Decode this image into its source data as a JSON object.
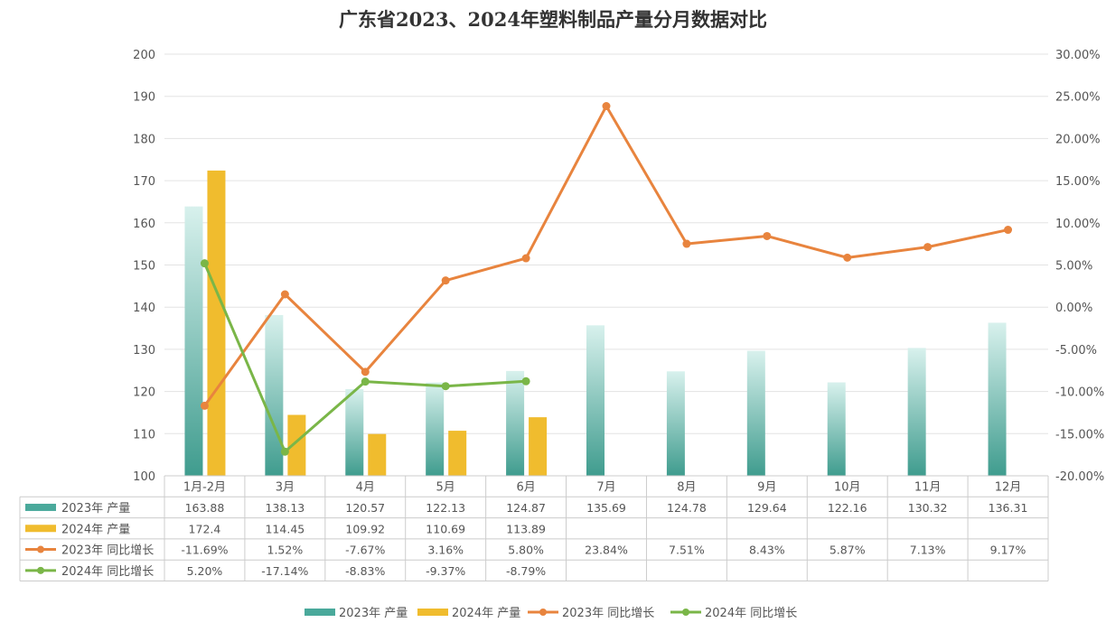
{
  "chart_data": {
    "type": "bar",
    "title": "广东省2023、2024年塑料制品产量分月数据对比",
    "categories": [
      "1月-2月",
      "3月",
      "4月",
      "5月",
      "6月",
      "7月",
      "8月",
      "9月",
      "10月",
      "11月",
      "12月"
    ],
    "y_left": {
      "range": [
        100,
        200
      ],
      "ticks": [
        "100",
        "110",
        "120",
        "130",
        "140",
        "150",
        "160",
        "170",
        "180",
        "190",
        "200"
      ]
    },
    "y_right": {
      "range": [
        -20,
        30
      ],
      "unit": "%",
      "ticks": [
        "-20.00%",
        "-15.00%",
        "-10.00%",
        "-5.00%",
        "0.00%",
        "5.00%",
        "10.00%",
        "15.00%",
        "20.00%",
        "25.00%",
        "30.00%"
      ]
    },
    "grid": true,
    "legend_position": "bottom",
    "data_table": true,
    "series": [
      {
        "name": "2023年 产量",
        "kind": "bar",
        "axis": "left",
        "color": "#4aa99b",
        "values": [
          163.88,
          138.13,
          120.57,
          122.13,
          124.87,
          135.69,
          124.78,
          129.64,
          122.16,
          130.32,
          136.31
        ],
        "labels": [
          "163.88",
          "138.13",
          "120.57",
          "122.13",
          "124.87",
          "135.69",
          "124.78",
          "129.64",
          "122.16",
          "130.32",
          "136.31"
        ]
      },
      {
        "name": "2024年 产量",
        "kind": "bar",
        "axis": "left",
        "color": "#f0bc2e",
        "values": [
          172.4,
          114.45,
          109.92,
          110.69,
          113.89,
          null,
          null,
          null,
          null,
          null,
          null
        ],
        "labels": [
          "172.4",
          "114.45",
          "109.92",
          "110.69",
          "113.89",
          "",
          "",
          "",
          "",
          "",
          ""
        ]
      },
      {
        "name": "2023年 同比增长",
        "kind": "line",
        "axis": "right",
        "color": "#e8843e",
        "values": [
          -11.69,
          1.52,
          -7.67,
          3.16,
          5.8,
          23.84,
          7.51,
          8.43,
          5.87,
          7.13,
          9.17
        ],
        "labels": [
          "-11.69%",
          "1.52%",
          "-7.67%",
          "3.16%",
          "5.80%",
          "23.84%",
          "7.51%",
          "8.43%",
          "5.87%",
          "7.13%",
          "9.17%"
        ]
      },
      {
        "name": "2024年 同比增长",
        "kind": "line",
        "axis": "right",
        "color": "#7ab648",
        "values": [
          5.2,
          -17.14,
          -8.83,
          -9.37,
          -8.79,
          null,
          null,
          null,
          null,
          null,
          null
        ],
        "labels": [
          "5.20%",
          "-17.14%",
          "-8.83%",
          "-9.37%",
          "-8.79%",
          "",
          "",
          "",
          "",
          "",
          ""
        ]
      }
    ]
  }
}
